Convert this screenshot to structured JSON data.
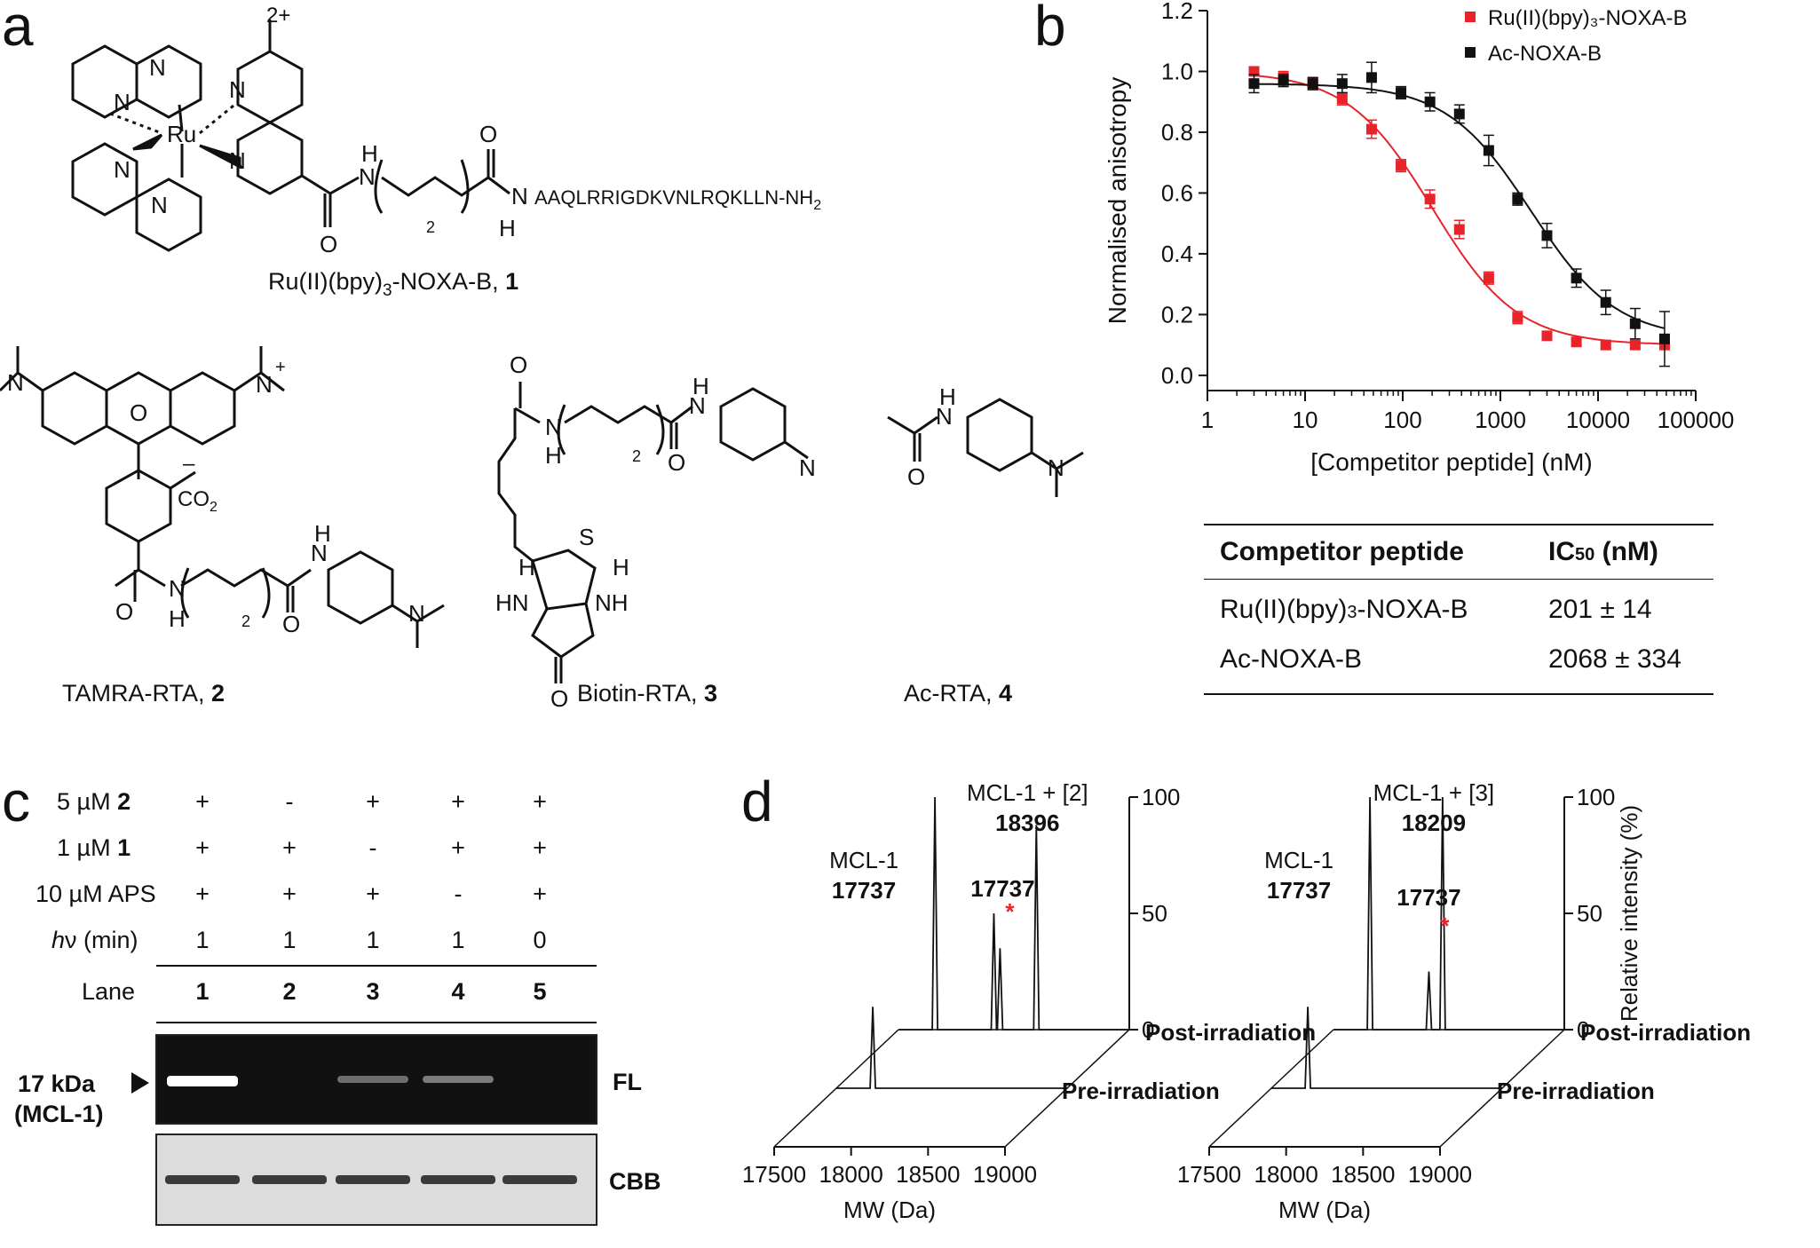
{
  "panels": {
    "a": "a",
    "b": "b",
    "c": "c",
    "d": "d"
  },
  "structures": {
    "s1": {
      "name": "Ru(II)(bpy)",
      "sub": "3",
      "rest": "-NOXA-B, ",
      "num": "1",
      "charge": "2+",
      "metal": "Ru",
      "peptide": "AAQLRRIGDKVNLRQKLLN-NH",
      "peptide_sub": "2",
      "chain_sub": "2",
      "atoms": {
        "N": "N",
        "H": "H",
        "O": "O"
      }
    },
    "s2": {
      "name": "TAMRA-RTA, ",
      "num": "2",
      "co2": "CO",
      "co2_sub": "2",
      "minus": "–",
      "plus": "+",
      "chain_sub": "2"
    },
    "s3": {
      "name": "Biotin-RTA, ",
      "num": "3",
      "S": "S",
      "HN": "HN",
      "NH": "NH",
      "chain_sub": "2"
    },
    "s4": {
      "name": "Ac-RTA, ",
      "num": "4"
    }
  },
  "chart_data": [
    {
      "type": "scatter",
      "panel": "b",
      "xlabel": "[Competitor peptide] (nM)",
      "ylabel": "Normalised anisotropy",
      "xscale": "log",
      "xlim": [
        1,
        100000
      ],
      "ylim": [
        -0.05,
        1.2
      ],
      "xticks": [
        "1",
        "10",
        "100",
        "1000",
        "10000",
        "100000"
      ],
      "yticks": [
        "0.0",
        "0.2",
        "0.4",
        "0.6",
        "0.8",
        "1.0",
        "1.2"
      ],
      "legend": "top-right",
      "series": [
        {
          "name": "Ru(II)(bpy)₃-NOXA-B",
          "color": "#e8232a",
          "x": [
            3,
            6,
            12,
            24,
            48,
            96,
            190,
            380,
            760,
            1500,
            3000,
            6000,
            12000,
            24000,
            48000
          ],
          "y": [
            1.0,
            0.98,
            0.96,
            0.91,
            0.81,
            0.69,
            0.58,
            0.48,
            0.32,
            0.19,
            0.13,
            0.11,
            0.1,
            0.1,
            0.1
          ],
          "err": [
            0.01,
            0.02,
            0.02,
            0.02,
            0.03,
            0.02,
            0.03,
            0.03,
            0.02,
            0.02,
            0.01,
            0.01,
            0.01,
            0.01,
            0.01
          ]
        },
        {
          "name": "Ac-NOXA-B",
          "color": "#111111",
          "x": [
            3,
            6,
            12,
            24,
            48,
            96,
            190,
            380,
            760,
            1500,
            3000,
            6000,
            12000,
            24000,
            48000
          ],
          "y": [
            0.96,
            0.97,
            0.96,
            0.96,
            0.98,
            0.93,
            0.9,
            0.86,
            0.74,
            0.58,
            0.46,
            0.32,
            0.24,
            0.17,
            0.12
          ],
          "err": [
            0.03,
            0.02,
            0.02,
            0.03,
            0.05,
            0.02,
            0.03,
            0.03,
            0.05,
            0.02,
            0.04,
            0.03,
            0.04,
            0.05,
            0.09
          ]
        }
      ],
      "ic50_nM": {
        "Ru(II)(bpy)₃-NOXA-B": 201,
        "Ac-NOXA-B": 2068
      }
    },
    {
      "type": "line",
      "panel": "d-left",
      "xlabel": "MW (Da)",
      "xlim": [
        17500,
        19000
      ],
      "xticks": [
        "17500",
        "18000",
        "18500",
        "19000"
      ],
      "ylim": [
        0,
        100
      ],
      "yticks": [
        "0",
        "50",
        "100"
      ],
      "series": [
        {
          "name": "Post-irradiation",
          "peaks": [
            [
              17737,
              100
            ],
            [
              18120,
              50
            ],
            [
              18160,
              35
            ],
            [
              18396,
              88
            ]
          ]
        },
        {
          "name": "Pre-irradiation",
          "peaks": [
            [
              17737,
              100
            ]
          ]
        }
      ],
      "annotations": [
        "MCL-1",
        "17737",
        "MCL-1 + [2]",
        "18396",
        "17737",
        "*"
      ]
    },
    {
      "type": "line",
      "panel": "d-right",
      "xlabel": "MW (Da)",
      "ylabel": "Relative intensity (%)",
      "xlim": [
        17500,
        19000
      ],
      "xticks": [
        "17500",
        "18000",
        "18500",
        "19000"
      ],
      "ylim": [
        0,
        100
      ],
      "yticks": [
        "0",
        "50",
        "100"
      ],
      "series": [
        {
          "name": "Post-irradiation",
          "peaks": [
            [
              17737,
              100
            ],
            [
              18120,
              25
            ],
            [
              18209,
              100
            ]
          ]
        },
        {
          "name": "Pre-irradiation",
          "peaks": [
            [
              17737,
              100
            ]
          ]
        }
      ],
      "annotations": [
        "MCL-1",
        "17737",
        "MCL-1 + [3]",
        "18209",
        "17737",
        "*"
      ]
    }
  ],
  "table": {
    "headers": [
      "Competitor peptide",
      "IC",
      "50",
      " (nM)"
    ],
    "rows": [
      [
        "Ru(II)(bpy)",
        "3",
        "-NOXA-B",
        "201 ± 14"
      ],
      [
        "Ac-NOXA-B",
        "",
        "",
        "2068 ± 334"
      ]
    ]
  },
  "gel": {
    "row_labels": [
      {
        "pre": "5 µM ",
        "bold": "2"
      },
      {
        "pre": "1 µM ",
        "bold": "1"
      },
      {
        "pre": "10 µM APS",
        "bold": ""
      },
      {
        "ital": "h",
        "pre": "ν (min)",
        "bold": ""
      }
    ],
    "values": [
      [
        "+",
        "-",
        "+",
        "+",
        "+"
      ],
      [
        "+",
        "+",
        "-",
        "+",
        "+"
      ],
      [
        "+",
        "+",
        "+",
        "-",
        "+"
      ],
      [
        "1",
        "1",
        "1",
        "1",
        "0"
      ]
    ],
    "lane_label": "Lane",
    "lanes": [
      "1",
      "2",
      "3",
      "4",
      "5"
    ],
    "band_label_1": "17 kDa",
    "band_label_2": "(MCL-1)",
    "fl_label": "FL",
    "cbb_label": "CBB",
    "fl_intensity": [
      1.0,
      0.0,
      0.25,
      0.32,
      0.0
    ]
  }
}
